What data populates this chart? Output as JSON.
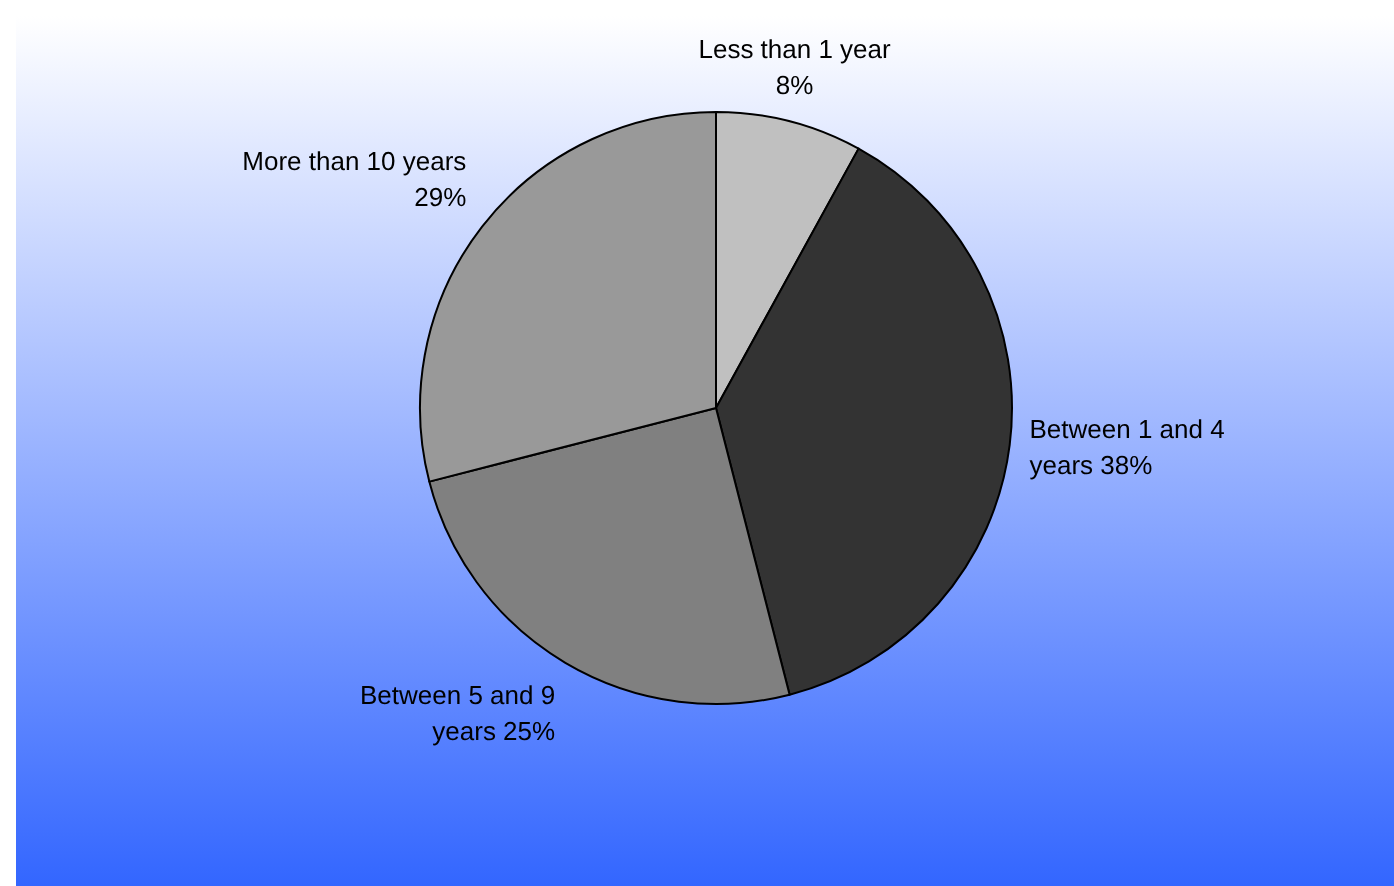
{
  "chart_data": {
    "type": "pie",
    "categories": [
      "Less than 1 year",
      "Between 1 and 4 years",
      "Between 5 and 9 years",
      "More than 10 years"
    ],
    "values": [
      8,
      38,
      25,
      29
    ],
    "value_labels": [
      "8%",
      "38%",
      "25%",
      "29%"
    ],
    "colors": [
      "#c0c0c0",
      "#333333",
      "#808080",
      "#999999"
    ]
  }
}
